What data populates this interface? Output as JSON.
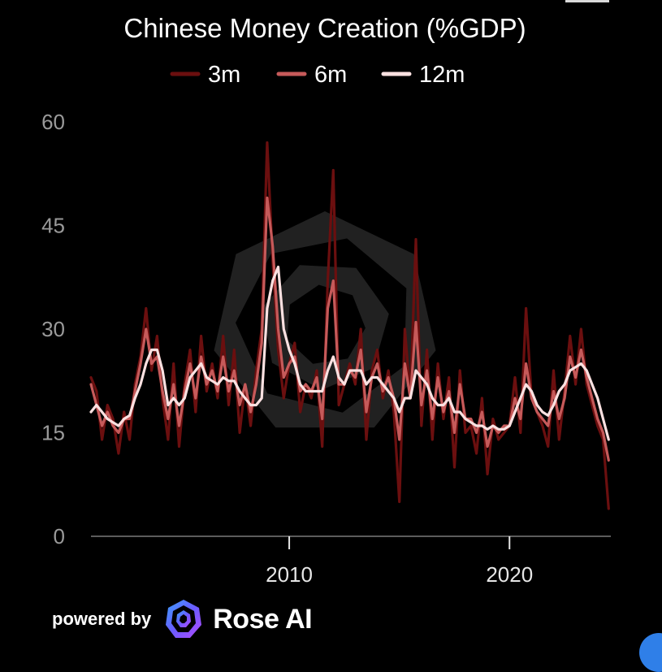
{
  "chart_data": {
    "type": "line",
    "title": "Chinese Money Creation (%GDP)",
    "xlabel": "",
    "ylabel": "",
    "xlim": [
      2001.0,
      2024.6
    ],
    "ylim": [
      0,
      60
    ],
    "yticks": [
      0,
      15,
      30,
      45,
      60
    ],
    "xticks": [
      2010,
      2020
    ],
    "grid": false,
    "legend": "top-center",
    "series": [
      {
        "name": "3m",
        "color": "#6b0f0f",
        "x": [
          2001.0,
          2001.25,
          2001.5,
          2001.75,
          2002.0,
          2002.25,
          2002.5,
          2002.75,
          2003.0,
          2003.25,
          2003.5,
          2003.75,
          2004.0,
          2004.25,
          2004.5,
          2004.75,
          2005.0,
          2005.25,
          2005.5,
          2005.75,
          2006.0,
          2006.25,
          2006.5,
          2006.75,
          2007.0,
          2007.25,
          2007.5,
          2007.75,
          2008.0,
          2008.25,
          2008.5,
          2008.75,
          2009.0,
          2009.25,
          2009.5,
          2009.75,
          2010.0,
          2010.25,
          2010.5,
          2010.75,
          2011.0,
          2011.25,
          2011.5,
          2011.75,
          2012.0,
          2012.25,
          2012.5,
          2012.75,
          2013.0,
          2013.25,
          2013.5,
          2013.75,
          2014.0,
          2014.25,
          2014.5,
          2014.75,
          2015.0,
          2015.25,
          2015.5,
          2015.75,
          2016.0,
          2016.25,
          2016.5,
          2016.75,
          2017.0,
          2017.25,
          2017.5,
          2017.75,
          2018.0,
          2018.25,
          2018.5,
          2018.75,
          2019.0,
          2019.25,
          2019.5,
          2019.75,
          2020.0,
          2020.25,
          2020.5,
          2020.75,
          2021.0,
          2021.25,
          2021.5,
          2021.75,
          2022.0,
          2022.25,
          2022.5,
          2022.75,
          2023.0,
          2023.25,
          2023.5,
          2023.75,
          2024.0,
          2024.25,
          2024.5
        ],
        "values": [
          23,
          21,
          14,
          19,
          17,
          12,
          18,
          14,
          22,
          26,
          33,
          24,
          29,
          20,
          14,
          25,
          13,
          22,
          27,
          18,
          29,
          21,
          25,
          20,
          29,
          19,
          27,
          15,
          22,
          16,
          24,
          30,
          57,
          40,
          27,
          20,
          25,
          28,
          18,
          22,
          20,
          24,
          13,
          37,
          53,
          19,
          22,
          25,
          22,
          30,
          14,
          24,
          27,
          20,
          24,
          18,
          5,
          30,
          20,
          43,
          16,
          27,
          14,
          25,
          17,
          23,
          10,
          24,
          15,
          16,
          12,
          20,
          9,
          17,
          14,
          15,
          16,
          23,
          15,
          33,
          20,
          18,
          16,
          13,
          24,
          14,
          21,
          29,
          22,
          30,
          22,
          19,
          16,
          14,
          4
        ]
      },
      {
        "name": "6m",
        "color": "#c65a5a",
        "x": [
          2001.0,
          2001.25,
          2001.5,
          2001.75,
          2002.0,
          2002.25,
          2002.5,
          2002.75,
          2003.0,
          2003.25,
          2003.5,
          2003.75,
          2004.0,
          2004.25,
          2004.5,
          2004.75,
          2005.0,
          2005.25,
          2005.5,
          2005.75,
          2006.0,
          2006.25,
          2006.5,
          2006.75,
          2007.0,
          2007.25,
          2007.5,
          2007.75,
          2008.0,
          2008.25,
          2008.5,
          2008.75,
          2009.0,
          2009.25,
          2009.5,
          2009.75,
          2010.0,
          2010.25,
          2010.5,
          2010.75,
          2011.0,
          2011.25,
          2011.5,
          2011.75,
          2012.0,
          2012.25,
          2012.5,
          2012.75,
          2013.0,
          2013.25,
          2013.5,
          2013.75,
          2014.0,
          2014.25,
          2014.5,
          2014.75,
          2015.0,
          2015.25,
          2015.5,
          2015.75,
          2016.0,
          2016.25,
          2016.5,
          2016.75,
          2017.0,
          2017.25,
          2017.5,
          2017.75,
          2018.0,
          2018.25,
          2018.5,
          2018.75,
          2019.0,
          2019.25,
          2019.5,
          2019.75,
          2020.0,
          2020.25,
          2020.5,
          2020.75,
          2021.0,
          2021.25,
          2021.5,
          2021.75,
          2022.0,
          2022.25,
          2022.5,
          2022.75,
          2023.0,
          2023.25,
          2023.5,
          2023.75,
          2024.0,
          2024.25,
          2024.5
        ],
        "values": [
          22,
          19,
          16,
          18,
          16,
          15,
          17,
          17,
          21,
          25,
          30,
          25,
          26,
          21,
          17,
          22,
          16,
          21,
          25,
          20,
          26,
          22,
          24,
          21,
          26,
          21,
          24,
          19,
          22,
          18,
          22,
          28,
          49,
          42,
          30,
          23,
          25,
          26,
          21,
          22,
          21,
          23,
          17,
          33,
          37,
          22,
          22,
          24,
          23,
          27,
          18,
          23,
          25,
          21,
          23,
          20,
          14,
          25,
          20,
          31,
          19,
          24,
          17,
          23,
          18,
          21,
          15,
          22,
          17,
          17,
          15,
          18,
          13,
          16,
          15,
          16,
          16,
          20,
          17,
          25,
          20,
          18,
          17,
          16,
          21,
          17,
          20,
          26,
          23,
          27,
          23,
          20,
          17,
          15,
          11
        ]
      },
      {
        "name": "12m",
        "color": "#fbe1e1",
        "x": [
          2001.0,
          2001.25,
          2001.5,
          2001.75,
          2002.0,
          2002.25,
          2002.5,
          2002.75,
          2003.0,
          2003.25,
          2003.5,
          2003.75,
          2004.0,
          2004.25,
          2004.5,
          2004.75,
          2005.0,
          2005.25,
          2005.5,
          2005.75,
          2006.0,
          2006.25,
          2006.5,
          2006.75,
          2007.0,
          2007.25,
          2007.5,
          2007.75,
          2008.0,
          2008.25,
          2008.5,
          2008.75,
          2009.0,
          2009.25,
          2009.5,
          2009.75,
          2010.0,
          2010.25,
          2010.5,
          2010.75,
          2011.0,
          2011.25,
          2011.5,
          2011.75,
          2012.0,
          2012.25,
          2012.5,
          2012.75,
          2013.0,
          2013.25,
          2013.5,
          2013.75,
          2014.0,
          2014.25,
          2014.5,
          2014.75,
          2015.0,
          2015.25,
          2015.5,
          2015.75,
          2016.0,
          2016.25,
          2016.5,
          2016.75,
          2017.0,
          2017.25,
          2017.5,
          2017.75,
          2018.0,
          2018.25,
          2018.5,
          2018.75,
          2019.0,
          2019.25,
          2019.5,
          2019.75,
          2020.0,
          2020.25,
          2020.5,
          2020.75,
          2021.0,
          2021.25,
          2021.5,
          2021.75,
          2022.0,
          2022.25,
          2022.5,
          2022.75,
          2023.0,
          2023.25,
          2023.5,
          2023.75,
          2024.0,
          2024.25,
          2024.5
        ],
        "values": [
          18,
          19,
          18,
          17,
          16.5,
          16,
          17,
          17.5,
          20,
          22,
          25,
          27,
          27,
          24,
          19,
          20,
          19,
          20,
          23,
          24,
          25,
          23,
          22.5,
          22,
          23,
          22.5,
          22.5,
          21,
          20,
          19,
          19,
          20,
          33,
          37,
          39,
          30,
          27,
          25,
          22,
          21,
          21,
          21,
          21,
          24,
          26,
          23,
          22,
          24,
          24,
          24,
          22,
          23,
          23,
          22,
          21,
          20,
          18,
          20,
          20,
          24,
          23,
          22,
          20,
          19,
          19,
          20,
          18,
          18,
          17,
          16.5,
          16,
          16,
          15.5,
          16,
          15.5,
          15.5,
          16,
          18,
          20,
          22,
          21,
          19,
          18,
          17.5,
          19,
          21,
          22,
          24,
          24.5,
          25,
          24,
          22,
          20,
          17,
          14
        ]
      }
    ]
  },
  "footer": {
    "powered_by": "powered by",
    "brand": "Rose AI",
    "logo_icon": "rose-ai-logo-icon"
  }
}
